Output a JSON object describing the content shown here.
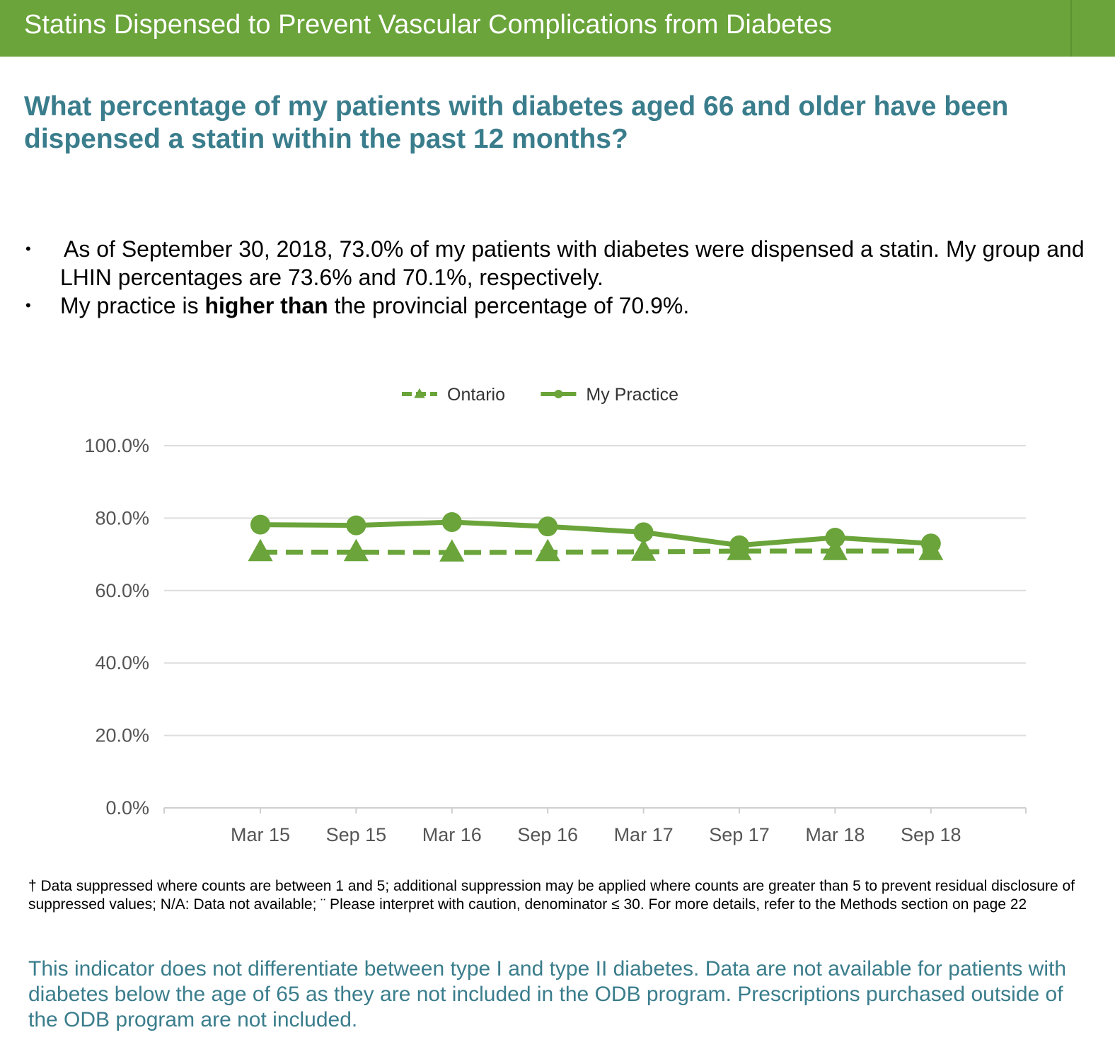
{
  "header": {
    "title": "Statins Dispensed to Prevent Vascular Complications from Diabetes",
    "accent_color": "#6aa43a"
  },
  "question": "What percentage of my patients with diabetes aged 66 and older have been dispensed a statin within the past 12 months?",
  "bullets": [
    {
      "text": "As of September 30, 2018, 73.0% of my patients with diabetes were dispensed a statin. My group and LHIN percentages are 73.6% and 70.1%, respectively."
    },
    {
      "prefix": "My practice is ",
      "bold": "higher than",
      "suffix": " the provincial percentage of 70.9%."
    }
  ],
  "chart_data": {
    "type": "line",
    "categories": [
      "Mar 15",
      "Sep 15",
      "Mar 16",
      "Sep 16",
      "Mar 17",
      "Sep 17",
      "Mar 18",
      "Sep 18"
    ],
    "series": [
      {
        "name": "Ontario",
        "style": "dashed",
        "marker": "triangle",
        "color": "#6aa43a",
        "values": [
          70.6,
          70.6,
          70.5,
          70.6,
          70.7,
          70.9,
          70.9,
          70.9
        ]
      },
      {
        "name": "My Practice",
        "style": "solid",
        "marker": "circle",
        "color": "#6aa43a",
        "values": [
          78.2,
          78.0,
          78.9,
          77.7,
          76.1,
          72.5,
          74.6,
          73.0
        ]
      }
    ],
    "ylim": [
      0,
      100
    ],
    "yticks": [
      "0.0%",
      "20.0%",
      "40.0%",
      "60.0%",
      "80.0%",
      "100.0%"
    ],
    "ytick_values": [
      0,
      20,
      40,
      60,
      80,
      100
    ],
    "grid": true,
    "legend_position": "top-center",
    "title": "",
    "xlabel": "",
    "ylabel": ""
  },
  "footnote": "† Data suppressed where counts are between 1 and 5; additional suppression may be applied where counts are greater than 5 to prevent residual disclosure of suppressed values; N/A: Data not available; ¨ Please interpret with caution, denominator ≤ 30. For more details, refer to the Methods section on page 22",
  "note": "This indicator does not differentiate between type I and type II diabetes. Data are not available for patients with diabetes below the age of 65 as they are not included in the ODB program. Prescriptions purchased outside of the ODB program are not included."
}
